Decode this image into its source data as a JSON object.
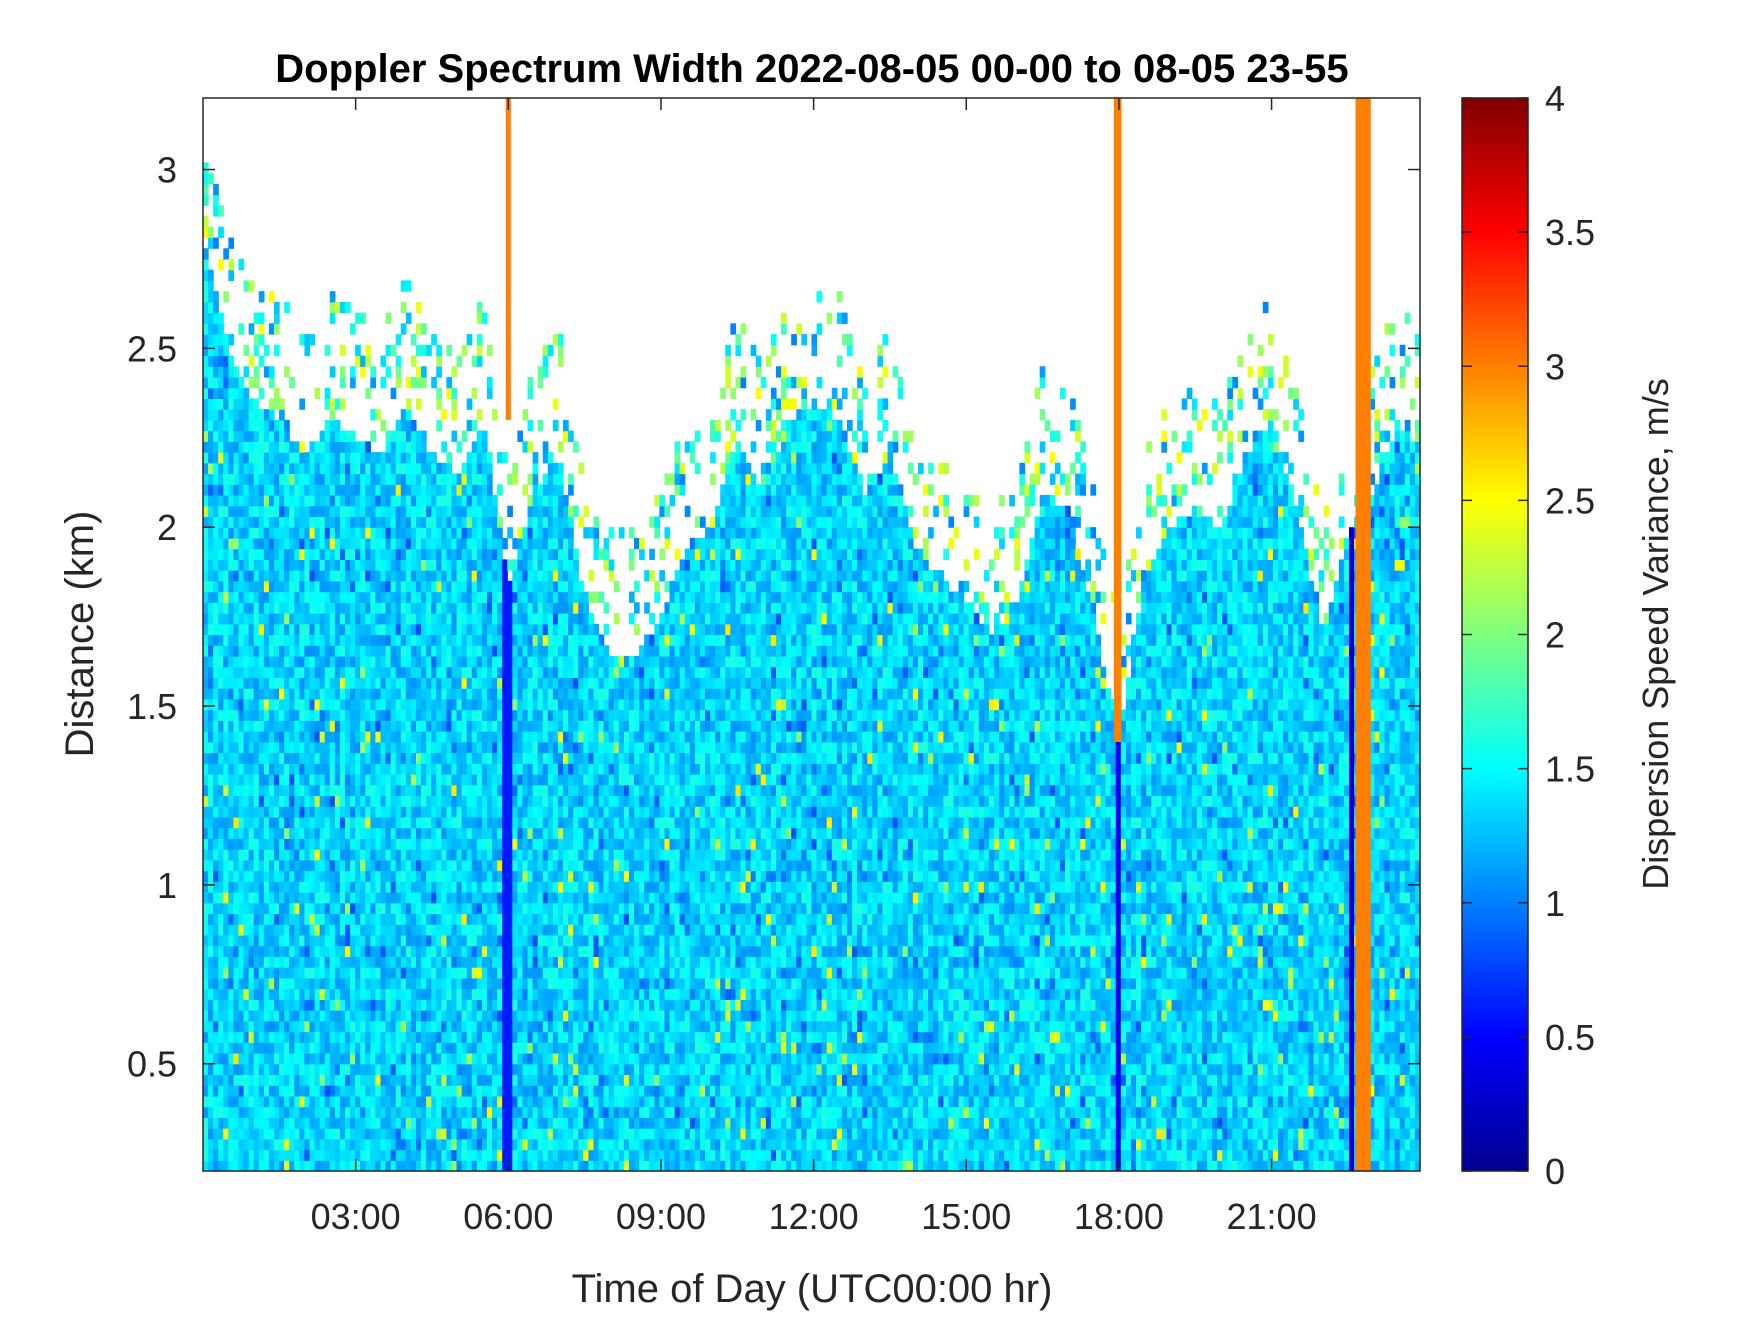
{
  "chart_data": {
    "type": "heatmap",
    "title": "Doppler Spectrum Width 2022-08-05 00-00 to 08-05 23-55",
    "xlabel": "Time of Day (UTC00:00 hr)",
    "ylabel": "Distance (km)",
    "colorbar_label": "Dispersion Speed Variance, m/s",
    "colormap": "jet",
    "xlim": [
      0,
      23.917
    ],
    "ylim": [
      0.2,
      3.2
    ],
    "clim": [
      0,
      4
    ],
    "x_ticks": [
      3,
      6,
      9,
      12,
      15,
      18,
      21
    ],
    "x_tick_labels": [
      "03:00",
      "06:00",
      "09:00",
      "12:00",
      "15:00",
      "18:00",
      "21:00"
    ],
    "y_ticks": [
      0.5,
      1,
      1.5,
      2,
      2.5,
      3
    ],
    "y_tick_labels": [
      "0.5",
      "1",
      "1.5",
      "2",
      "2.5",
      "3"
    ],
    "colorbar_ticks": [
      0,
      0.5,
      1,
      1.5,
      2,
      2.5,
      3,
      3.5,
      4
    ],
    "colorbar_tick_labels": [
      "0",
      "0.5",
      "1",
      "1.5",
      "2",
      "2.5",
      "3",
      "3.5",
      "4"
    ],
    "typical_value": 1.35,
    "valid_data_top_km": [
      [
        0,
        2.8
      ],
      [
        0.5,
        2.5
      ],
      [
        1,
        2.35
      ],
      [
        1.5,
        2.3
      ],
      [
        2,
        2.2
      ],
      [
        2.5,
        2.3
      ],
      [
        3,
        2.25
      ],
      [
        3.5,
        2.2
      ],
      [
        4,
        2.35
      ],
      [
        4.5,
        2.2
      ],
      [
        5,
        2.15
      ],
      [
        5.5,
        2.3
      ],
      [
        6,
        1.85
      ],
      [
        6.5,
        2.1
      ],
      [
        7,
        2.2
      ],
      [
        7.5,
        1.8
      ],
      [
        8,
        1.65
      ],
      [
        8.5,
        1.65
      ],
      [
        9,
        1.75
      ],
      [
        9.5,
        1.95
      ],
      [
        10,
        2.0
      ],
      [
        10.5,
        2.25
      ],
      [
        11,
        2.1
      ],
      [
        11.5,
        2.3
      ],
      [
        12,
        2.35
      ],
      [
        12.5,
        2.3
      ],
      [
        13,
        2.1
      ],
      [
        13.5,
        2.2
      ],
      [
        14,
        1.95
      ],
      [
        14.5,
        1.85
      ],
      [
        15,
        1.8
      ],
      [
        15.5,
        1.7
      ],
      [
        16,
        1.8
      ],
      [
        16.5,
        2.1
      ],
      [
        17,
        2.05
      ],
      [
        17.5,
        1.75
      ],
      [
        18,
        1.4
      ],
      [
        18.5,
        1.85
      ],
      [
        19,
        2.0
      ],
      [
        19.5,
        2.05
      ],
      [
        20,
        2.0
      ],
      [
        20.5,
        2.2
      ],
      [
        21,
        2.3
      ],
      [
        21.5,
        2.05
      ],
      [
        22,
        1.7
      ],
      [
        22.5,
        2.0
      ],
      [
        23,
        2.1
      ],
      [
        23.5,
        2.3
      ],
      [
        23.917,
        2.2
      ]
    ],
    "artifact_bands": [
      {
        "x_start": 5.95,
        "x_end": 6.05,
        "y_start": 2.3,
        "y_end": 3.2,
        "value": 3.0
      },
      {
        "x_start": 17.9,
        "x_end": 18.05,
        "y_start": 1.4,
        "y_end": 3.2,
        "value": 3.0
      },
      {
        "x_start": 22.65,
        "x_end": 22.95,
        "y_start": 0.2,
        "y_end": 3.2,
        "value": 3.0
      }
    ],
    "low_value_streaks": [
      {
        "x": 5.98,
        "value": 0.6
      },
      {
        "x": 17.98,
        "value": 0.5
      },
      {
        "x": 22.6,
        "value": 0.3
      }
    ]
  }
}
